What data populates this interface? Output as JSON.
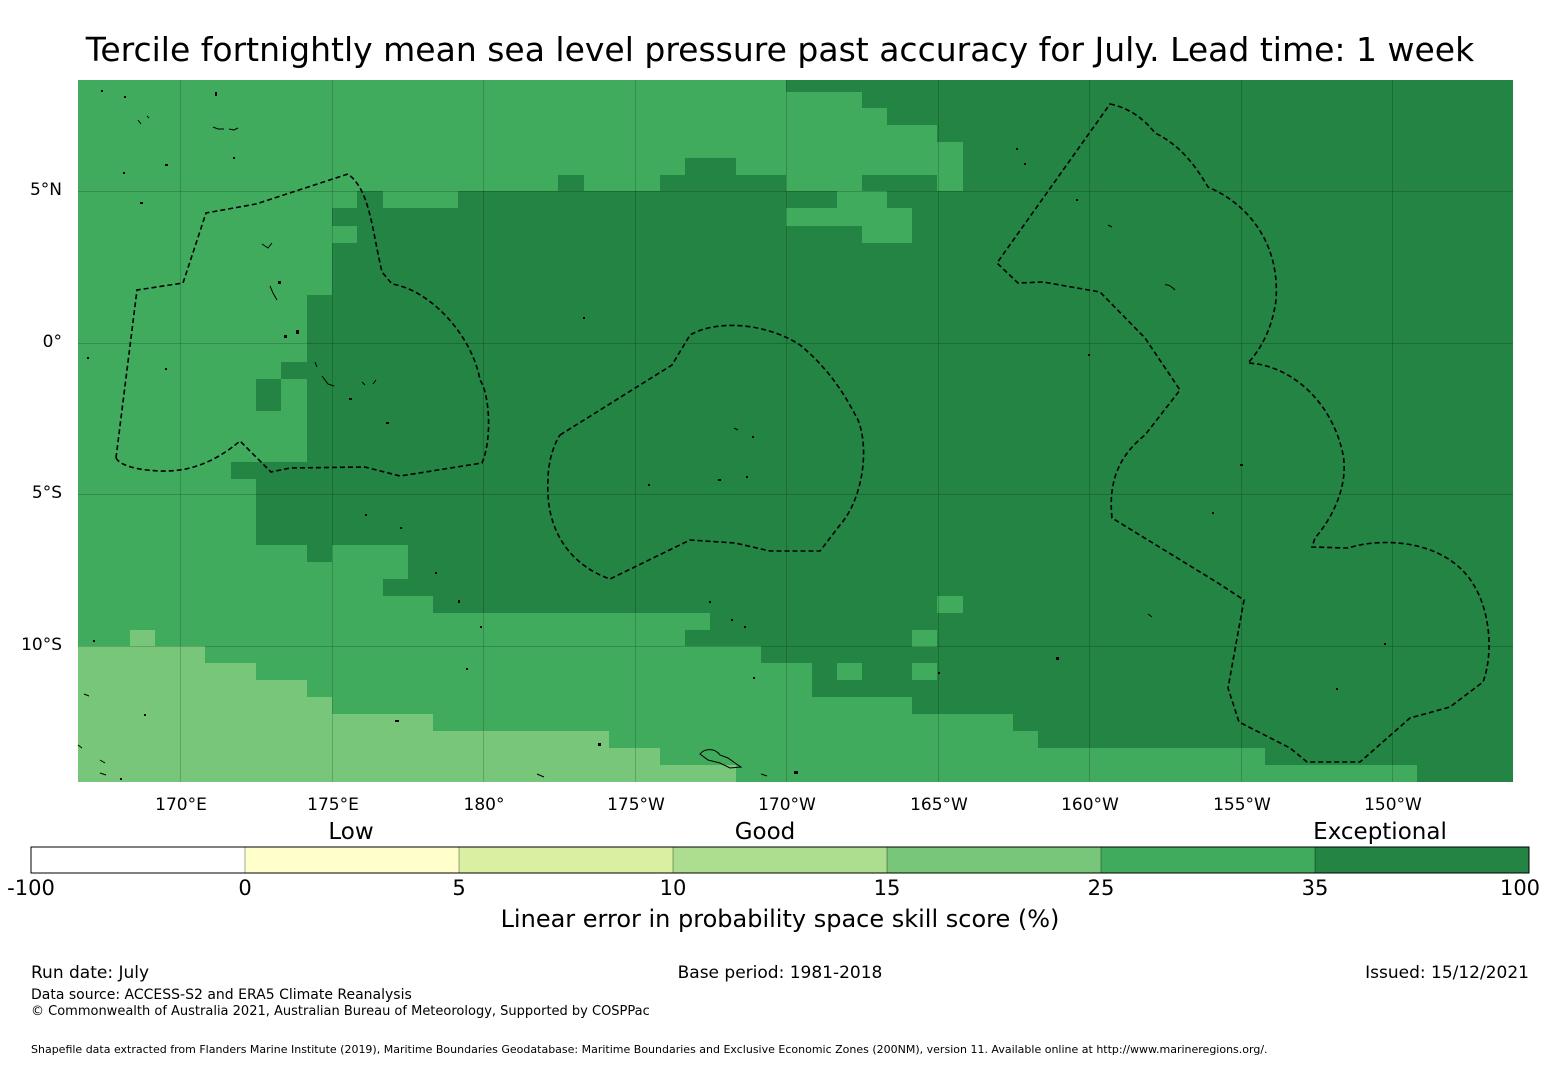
{
  "title": "Tercile fortnightly mean sea level pressure past accuracy for July. Lead time: 1 week",
  "map": {
    "lat_labels": [
      "5°N",
      "0°",
      "5°S",
      "10°S"
    ],
    "lon_labels": [
      "170°E",
      "175°E",
      "180°",
      "175°W",
      "170°W",
      "165°W",
      "160°W",
      "155°W",
      "150°W"
    ],
    "colors": {
      "ge35": "#238443",
      "c25_35": "#41ab5d",
      "c15_25": "#78c679",
      "c10_15": "#addd8e",
      "c5_10": "#d9f0a3",
      "c0_5": "#ffffcc",
      "neg": "#ffffff"
    }
  },
  "colorbar": {
    "categories": [
      "Low",
      "Good",
      "Exceptional"
    ],
    "ticks": [
      "-100",
      "0",
      "5",
      "10",
      "15",
      "25",
      "35",
      "100"
    ],
    "title": "Linear error in probability space skill score (%)"
  },
  "footer": {
    "run_date": "Run date: July",
    "base_period": "Base period: 1981-2018",
    "issued": "Issued: 15/12/2021",
    "data_source": "Data source: ACCESS-S2 and ERA5 Climate Reanalysis",
    "copyright": "© Commonwealth of Australia 2021, Australian Bureau of Meteorology, Supported by COSPPac",
    "shapefile": "Shapefile data extracted from Flanders Marine Institute (2019), Maritime Boundaries Geodatabase: Maritime Boundaries and Exclusive Economic Zones (200NM), version 11. Available online at http://www.marineregions.org/."
  }
}
